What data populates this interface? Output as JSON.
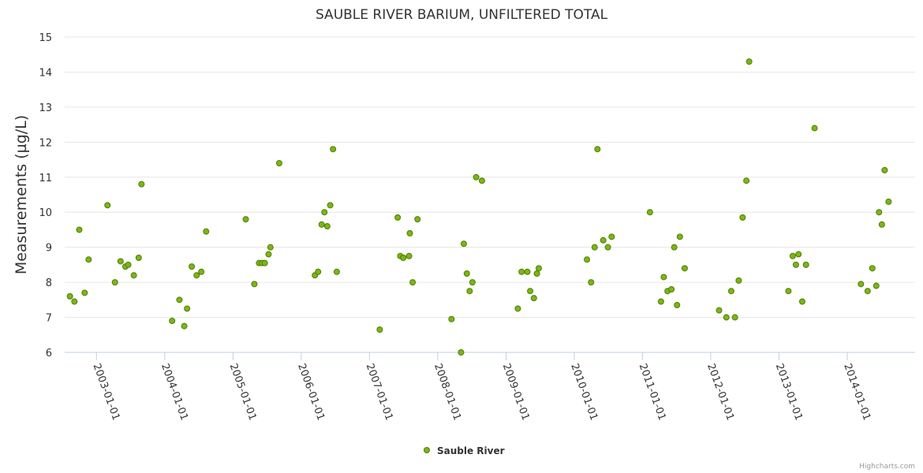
{
  "chart_data": {
    "type": "scatter",
    "title": "SAUBLE RIVER BARIUM, UNFILTERED TOTAL",
    "ylabel": "Measurements (µg/L)",
    "xlabel": "",
    "ylim": [
      6,
      15
    ],
    "yticks": [
      6,
      7,
      8,
      9,
      10,
      11,
      12,
      13,
      14,
      15
    ],
    "xlim": [
      "2002-07-15",
      "2014-12-30"
    ],
    "xticks": [
      "2003-01-01",
      "2004-01-01",
      "2005-01-01",
      "2006-01-01",
      "2007-01-01",
      "2008-01-01",
      "2009-01-01",
      "2010-01-01",
      "2011-01-01",
      "2012-01-01",
      "2013-01-01",
      "2014-01-01"
    ],
    "grid": true,
    "legend_position": "bottom-center",
    "series": [
      {
        "name": "Sauble River",
        "color": "#7cb518",
        "points": [
          [
            "2002-08-12",
            7.6
          ],
          [
            "2002-09-05",
            7.45
          ],
          [
            "2002-10-01",
            9.5
          ],
          [
            "2002-10-30",
            7.7
          ],
          [
            "2002-11-20",
            8.65
          ],
          [
            "2003-03-01",
            10.2
          ],
          [
            "2003-04-10",
            8.0
          ],
          [
            "2003-05-10",
            8.6
          ],
          [
            "2003-06-05",
            8.45
          ],
          [
            "2003-06-20",
            8.5
          ],
          [
            "2003-07-20",
            8.2
          ],
          [
            "2003-08-15",
            8.7
          ],
          [
            "2003-08-30",
            10.8
          ],
          [
            "2004-02-10",
            6.9
          ],
          [
            "2004-03-20",
            7.5
          ],
          [
            "2004-04-15",
            6.75
          ],
          [
            "2004-04-30",
            7.25
          ],
          [
            "2004-05-25",
            8.45
          ],
          [
            "2004-06-20",
            8.2
          ],
          [
            "2004-07-15",
            8.3
          ],
          [
            "2004-08-10",
            9.45
          ],
          [
            "2005-03-10",
            9.8
          ],
          [
            "2005-04-25",
            7.95
          ],
          [
            "2005-05-20",
            8.55
          ],
          [
            "2005-06-05",
            8.55
          ],
          [
            "2005-06-20",
            8.55
          ],
          [
            "2005-07-10",
            8.8
          ],
          [
            "2005-07-20",
            9.0
          ],
          [
            "2005-09-05",
            11.4
          ],
          [
            "2006-03-15",
            8.2
          ],
          [
            "2006-04-01",
            8.3
          ],
          [
            "2006-04-20",
            9.65
          ],
          [
            "2006-05-05",
            10.0
          ],
          [
            "2006-05-20",
            9.6
          ],
          [
            "2006-06-05",
            10.2
          ],
          [
            "2006-06-20",
            11.8
          ],
          [
            "2006-07-10",
            8.3
          ],
          [
            "2007-02-25",
            6.65
          ],
          [
            "2007-06-01",
            9.85
          ],
          [
            "2007-06-15",
            8.75
          ],
          [
            "2007-07-01",
            8.7
          ],
          [
            "2007-08-01",
            8.75
          ],
          [
            "2007-08-05",
            9.4
          ],
          [
            "2007-08-20",
            8.0
          ],
          [
            "2007-09-15",
            9.8
          ],
          [
            "2008-03-15",
            6.95
          ],
          [
            "2008-05-05",
            6.0
          ],
          [
            "2008-05-20",
            9.1
          ],
          [
            "2008-06-05",
            8.25
          ],
          [
            "2008-06-20",
            7.75
          ],
          [
            "2008-07-05",
            8.0
          ],
          [
            "2008-07-25",
            11.0
          ],
          [
            "2008-08-25",
            10.9
          ],
          [
            "2009-03-05",
            7.25
          ],
          [
            "2009-03-25",
            8.3
          ],
          [
            "2009-04-25",
            8.3
          ],
          [
            "2009-05-10",
            7.75
          ],
          [
            "2009-05-30",
            7.55
          ],
          [
            "2009-06-15",
            8.25
          ],
          [
            "2009-06-25",
            8.4
          ],
          [
            "2010-03-10",
            8.65
          ],
          [
            "2010-04-01",
            8.0
          ],
          [
            "2010-04-20",
            9.0
          ],
          [
            "2010-05-05",
            11.8
          ],
          [
            "2010-06-05",
            9.2
          ],
          [
            "2010-06-30",
            9.0
          ],
          [
            "2010-07-20",
            9.3
          ],
          [
            "2011-02-10",
            10.0
          ],
          [
            "2011-04-10",
            7.45
          ],
          [
            "2011-04-25",
            8.15
          ],
          [
            "2011-05-15",
            7.75
          ],
          [
            "2011-06-05",
            7.8
          ],
          [
            "2011-06-20",
            9.0
          ],
          [
            "2011-07-05",
            7.35
          ],
          [
            "2011-07-20",
            9.3
          ],
          [
            "2011-08-15",
            8.4
          ],
          [
            "2012-02-15",
            7.2
          ],
          [
            "2012-03-25",
            7.0
          ],
          [
            "2012-04-20",
            7.75
          ],
          [
            "2012-05-10",
            7.0
          ],
          [
            "2012-05-30",
            8.05
          ],
          [
            "2012-06-20",
            9.85
          ],
          [
            "2012-07-10",
            10.9
          ],
          [
            "2012-07-25",
            14.3
          ],
          [
            "2013-02-20",
            7.75
          ],
          [
            "2013-03-15",
            8.75
          ],
          [
            "2013-04-01",
            8.5
          ],
          [
            "2013-04-15",
            8.8
          ],
          [
            "2013-05-05",
            7.45
          ],
          [
            "2013-05-25",
            8.5
          ],
          [
            "2013-07-10",
            12.4
          ],
          [
            "2014-03-15",
            7.95
          ],
          [
            "2014-04-20",
            7.75
          ],
          [
            "2014-05-15",
            8.4
          ],
          [
            "2014-06-05",
            7.9
          ],
          [
            "2014-06-20",
            10.0
          ],
          [
            "2014-07-05",
            9.65
          ],
          [
            "2014-07-20",
            11.2
          ],
          [
            "2014-08-10",
            10.3
          ]
        ]
      }
    ],
    "legend": [
      {
        "name": "Sauble River"
      }
    ],
    "credits": "Highcharts.com"
  }
}
